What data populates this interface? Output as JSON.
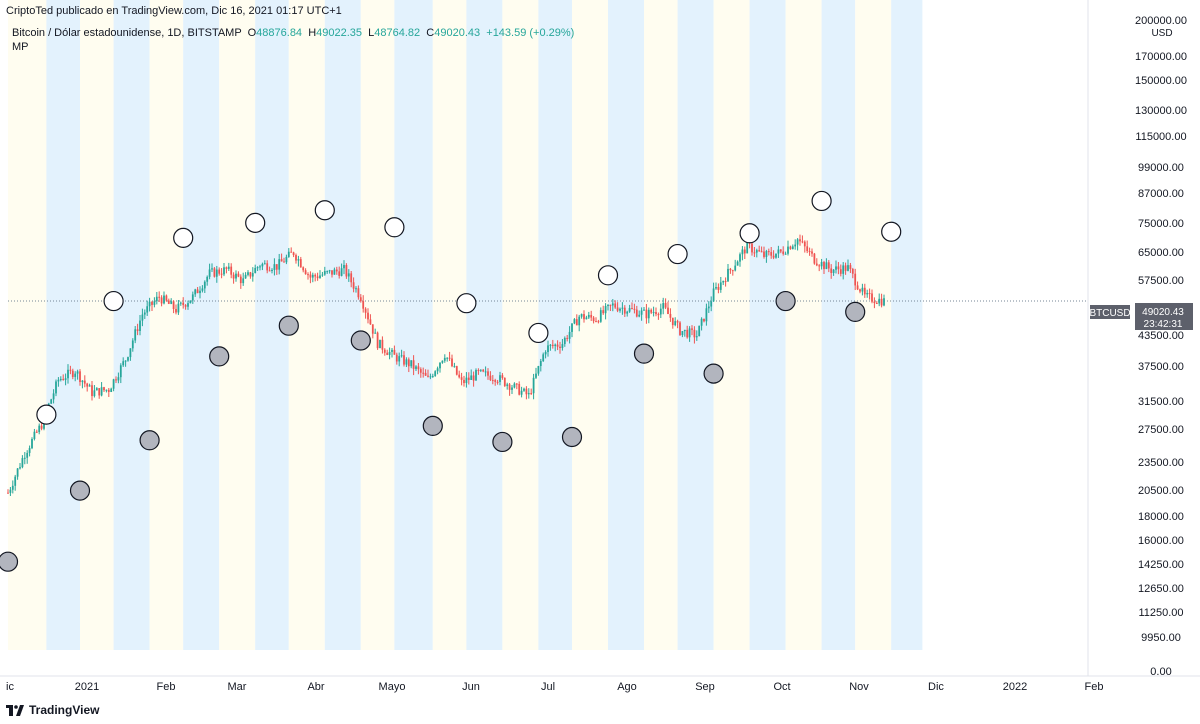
{
  "header": {
    "published": "CriptoTed publicado en TradingView.com, Dic 16, 2021 01:17 UTC+1",
    "symbol": "Bitcoin / Dólar estadounidense, 1D, BITSTAMP",
    "open_label": "O",
    "open": "48876.84",
    "high_label": "H",
    "high": "49022.35",
    "low_label": "L",
    "low": "48764.82",
    "close_label": "C",
    "close": "49020.43",
    "change": "+143.59 (+0.29%)",
    "indicator": "MP"
  },
  "brand": {
    "name": "TradingView",
    "icon": "tradingview-logo-icon"
  },
  "price_scale": {
    "currency": "USD",
    "ticks": [
      "200000.00",
      "170000.00",
      "150000.00",
      "130000.00",
      "115000.00",
      "99000.00",
      "87000.00",
      "75000.00",
      "65000.00",
      "57500.00",
      "49020.43",
      "43500.00",
      "37500.00",
      "31500.00",
      "27500.00",
      "23500.00",
      "20500.00",
      "18000.00",
      "16000.00",
      "14250.00",
      "12650.00",
      "11250.00",
      "9950.00",
      "0.00"
    ],
    "last_price_badge": {
      "symbol": "BTCUSD",
      "price": "49020.43",
      "countdown": "23:42:31"
    }
  },
  "time_axis": {
    "labels": [
      "ic",
      "2021",
      "Feb",
      "Mar",
      "Abr",
      "Mayo",
      "Jun",
      "Jul",
      "Ago",
      "Sep",
      "Oct",
      "Nov",
      "Dic",
      "2022",
      "Feb"
    ]
  },
  "colors": {
    "up": "#26a69a",
    "down": "#ef5350",
    "band_blue": "#e3f2fd",
    "band_yellow": "#fffdf0",
    "circle_dark": "#b2b5be",
    "circle_light": "#ffffff",
    "grid": "#f0f3fa"
  },
  "chart_data": {
    "type": "candlestick",
    "symbol": "BTCUSD",
    "scale": "log",
    "x_range": [
      "2020-12-15",
      "2022-03-10"
    ],
    "y_range": [
      8000,
      210000
    ],
    "close_series": [
      [
        "2020-12-15",
        19400
      ],
      [
        "2020-12-22",
        23500
      ],
      [
        "2020-12-29",
        27000
      ],
      [
        "2021-01-05",
        33500
      ],
      [
        "2021-01-12",
        35000
      ],
      [
        "2021-01-19",
        31500
      ],
      [
        "2021-01-26",
        32000
      ],
      [
        "2021-02-02",
        37000
      ],
      [
        "2021-02-09",
        46000
      ],
      [
        "2021-02-16",
        50000
      ],
      [
        "2021-02-23",
        47000
      ],
      [
        "2021-03-02",
        50000
      ],
      [
        "2021-03-09",
        56000
      ],
      [
        "2021-03-16",
        57000
      ],
      [
        "2021-03-23",
        54000
      ],
      [
        "2021-03-30",
        58500
      ],
      [
        "2021-04-06",
        58000
      ],
      [
        "2021-04-13",
        62000
      ],
      [
        "2021-04-20",
        55000
      ],
      [
        "2021-04-27",
        56000
      ],
      [
        "2021-05-04",
        57000
      ],
      [
        "2021-05-11",
        50000
      ],
      [
        "2021-05-18",
        40000
      ],
      [
        "2021-05-25",
        37500
      ],
      [
        "2021-06-01",
        36000
      ],
      [
        "2021-06-08",
        33500
      ],
      [
        "2021-06-15",
        38000
      ],
      [
        "2021-06-22",
        33000
      ],
      [
        "2021-06-29",
        34500
      ],
      [
        "2021-07-06",
        34000
      ],
      [
        "2021-07-13",
        32500
      ],
      [
        "2021-07-20",
        31000
      ],
      [
        "2021-07-27",
        39000
      ],
      [
        "2021-08-03",
        40000
      ],
      [
        "2021-08-10",
        45500
      ],
      [
        "2021-08-17",
        45000
      ],
      [
        "2021-08-24",
        48000
      ],
      [
        "2021-08-31",
        47000
      ],
      [
        "2021-09-07",
        46000
      ],
      [
        "2021-09-14",
        47500
      ],
      [
        "2021-09-21",
        42500
      ],
      [
        "2021-09-28",
        41500
      ],
      [
        "2021-10-05",
        51000
      ],
      [
        "2021-10-12",
        57000
      ],
      [
        "2021-10-19",
        64000
      ],
      [
        "2021-10-26",
        61000
      ],
      [
        "2021-11-02",
        62000
      ],
      [
        "2021-11-09",
        66000
      ],
      [
        "2021-11-16",
        60000
      ],
      [
        "2021-11-23",
        57000
      ],
      [
        "2021-11-30",
        57500
      ],
      [
        "2021-12-07",
        50000
      ],
      [
        "2021-12-15",
        49020.43
      ]
    ],
    "mp_circles": [
      {
        "date": "2020-12-15",
        "price": 13900,
        "style": "dark"
      },
      {
        "date": "2020-12-31",
        "price": 28300,
        "style": "light"
      },
      {
        "date": "2021-01-14",
        "price": 19600,
        "style": "dark"
      },
      {
        "date": "2021-01-28",
        "price": 49000,
        "style": "light"
      },
      {
        "date": "2021-02-12",
        "price": 25000,
        "style": "dark"
      },
      {
        "date": "2021-02-26",
        "price": 66500,
        "style": "light"
      },
      {
        "date": "2021-03-13",
        "price": 37500,
        "style": "dark"
      },
      {
        "date": "2021-03-28",
        "price": 71500,
        "style": "light"
      },
      {
        "date": "2021-04-11",
        "price": 43500,
        "style": "dark"
      },
      {
        "date": "2021-04-26",
        "price": 76000,
        "style": "light"
      },
      {
        "date": "2021-05-11",
        "price": 40500,
        "style": "dark"
      },
      {
        "date": "2021-05-25",
        "price": 70000,
        "style": "light"
      },
      {
        "date": "2021-06-10",
        "price": 26800,
        "style": "dark"
      },
      {
        "date": "2021-06-24",
        "price": 48500,
        "style": "light"
      },
      {
        "date": "2021-07-09",
        "price": 24800,
        "style": "dark"
      },
      {
        "date": "2021-07-24",
        "price": 42000,
        "style": "light"
      },
      {
        "date": "2021-08-07",
        "price": 25400,
        "style": "dark"
      },
      {
        "date": "2021-08-22",
        "price": 55500,
        "style": "light"
      },
      {
        "date": "2021-09-06",
        "price": 38000,
        "style": "dark"
      },
      {
        "date": "2021-09-20",
        "price": 61500,
        "style": "light"
      },
      {
        "date": "2021-10-05",
        "price": 34500,
        "style": "dark"
      },
      {
        "date": "2021-10-20",
        "price": 68000,
        "style": "light"
      },
      {
        "date": "2021-11-04",
        "price": 49000,
        "style": "dark"
      },
      {
        "date": "2021-11-19",
        "price": 79500,
        "style": "light"
      },
      {
        "date": "2021-12-03",
        "price": 46500,
        "style": "dark"
      },
      {
        "date": "2021-12-18",
        "price": 68500,
        "style": "light"
      }
    ],
    "bands": [
      [
        "2020-12-15",
        "2020-12-31",
        "yellow"
      ],
      [
        "2020-12-31",
        "2021-01-14",
        "blue"
      ],
      [
        "2021-01-14",
        "2021-01-28",
        "yellow"
      ],
      [
        "2021-01-28",
        "2021-02-12",
        "blue"
      ],
      [
        "2021-02-12",
        "2021-02-26",
        "yellow"
      ],
      [
        "2021-02-26",
        "2021-03-13",
        "blue"
      ],
      [
        "2021-03-13",
        "2021-03-28",
        "yellow"
      ],
      [
        "2021-03-28",
        "2021-04-11",
        "blue"
      ],
      [
        "2021-04-11",
        "2021-04-26",
        "yellow"
      ],
      [
        "2021-04-26",
        "2021-05-11",
        "blue"
      ],
      [
        "2021-05-11",
        "2021-05-25",
        "yellow"
      ],
      [
        "2021-05-25",
        "2021-06-10",
        "blue"
      ],
      [
        "2021-06-10",
        "2021-06-24",
        "yellow"
      ],
      [
        "2021-06-24",
        "2021-07-09",
        "blue"
      ],
      [
        "2021-07-09",
        "2021-07-24",
        "yellow"
      ],
      [
        "2021-07-24",
        "2021-08-07",
        "blue"
      ],
      [
        "2021-08-07",
        "2021-08-22",
        "yellow"
      ],
      [
        "2021-08-22",
        "2021-09-06",
        "blue"
      ],
      [
        "2021-09-06",
        "2021-09-20",
        "yellow"
      ],
      [
        "2021-09-20",
        "2021-10-05",
        "blue"
      ],
      [
        "2021-10-05",
        "2021-10-20",
        "yellow"
      ],
      [
        "2021-10-20",
        "2021-11-04",
        "blue"
      ],
      [
        "2021-11-04",
        "2021-11-19",
        "yellow"
      ],
      [
        "2021-11-19",
        "2021-12-03",
        "blue"
      ],
      [
        "2021-12-03",
        "2021-12-18",
        "yellow"
      ],
      [
        "2021-12-18",
        "2021-12-31",
        "blue"
      ]
    ],
    "grid": false
  }
}
